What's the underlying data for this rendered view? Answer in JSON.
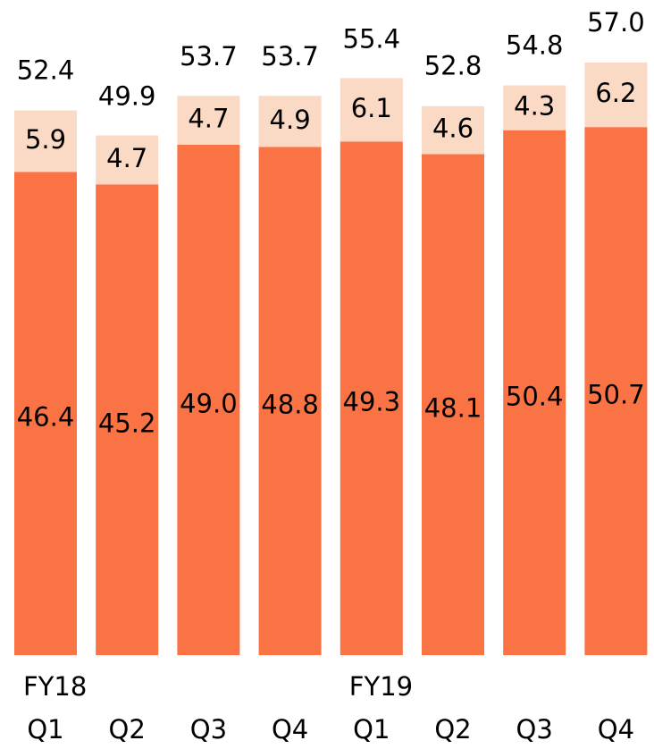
{
  "chart_data": {
    "type": "stacked_bar",
    "categories": [
      "Q1",
      "Q2",
      "Q3",
      "Q4",
      "Q1",
      "Q2",
      "Q3",
      "Q4"
    ],
    "group_labels": [
      "FY18",
      null,
      null,
      null,
      "FY19",
      null,
      null,
      null
    ],
    "series": [
      {
        "color": "#f97345",
        "values": [
          46.4,
          45.2,
          49.0,
          48.8,
          49.3,
          48.1,
          50.4,
          50.7
        ],
        "value_labels": [
          "46.4",
          "45.2",
          "49.0",
          "48.8",
          "49.3",
          "48.1",
          "50.4",
          "50.7"
        ]
      },
      {
        "color": "#fad9c5",
        "values": [
          5.9,
          4.7,
          4.7,
          4.9,
          6.1,
          4.6,
          4.3,
          6.2
        ]
      }
    ],
    "totals": [
      52.4,
      49.9,
      53.7,
      53.7,
      55.4,
      52.8,
      54.8,
      57.0
    ],
    "total_labels": [
      "52.4",
      "49.9",
      "53.7",
      "53.7",
      "55.4",
      "52.8",
      "54.8",
      "57.0"
    ],
    "ylim": [
      0,
      62.9
    ]
  }
}
